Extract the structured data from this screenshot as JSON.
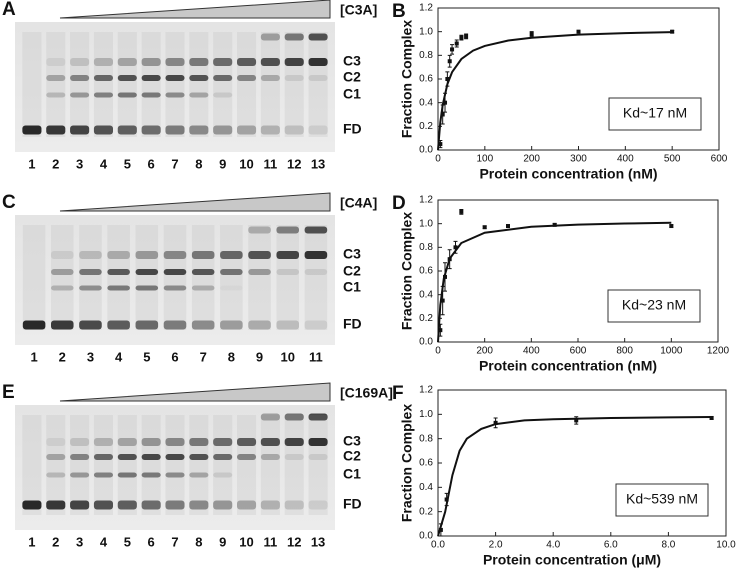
{
  "gels": [
    {
      "panel": "A",
      "label": "[C3A]",
      "lanes": [
        "1",
        "2",
        "3",
        "4",
        "5",
        "6",
        "7",
        "8",
        "9",
        "10",
        "11",
        "12",
        "13"
      ],
      "bands": [
        "C3",
        "C2",
        "C1",
        "FD"
      ]
    },
    {
      "panel": "C",
      "label": "[C4A]",
      "lanes": [
        "1",
        "2",
        "3",
        "4",
        "5",
        "6",
        "7",
        "8",
        "9",
        "10",
        "11"
      ],
      "bands": [
        "C3",
        "C2",
        "C1",
        "FD"
      ]
    },
    {
      "panel": "E",
      "label": "[C169A]",
      "lanes": [
        "1",
        "2",
        "3",
        "4",
        "5",
        "6",
        "7",
        "8",
        "9",
        "10",
        "11",
        "12",
        "13"
      ],
      "bands": [
        "C3",
        "C2",
        "C1",
        "FD"
      ]
    }
  ],
  "chart_data": [
    {
      "type": "scatter",
      "panel": "B",
      "xlabel": "Protein concentration (nM)",
      "ylabel": "Fraction Complex",
      "annotation": "Kd~17 nM",
      "x": [
        5,
        10,
        15,
        20,
        25,
        30,
        40,
        50,
        60,
        200,
        300,
        500
      ],
      "values": [
        0.05,
        0.3,
        0.4,
        0.6,
        0.75,
        0.85,
        0.9,
        0.95,
        0.96,
        0.98,
        1.0,
        1.0
      ],
      "errors": [
        0.03,
        0.08,
        0.08,
        0.06,
        0.05,
        0.04,
        0.03,
        0.02,
        0.02,
        0.02,
        0.01,
        0.01
      ],
      "fit_x": [
        0,
        5,
        10,
        20,
        30,
        50,
        75,
        100,
        150,
        200,
        300,
        400,
        500
      ],
      "fit_values": [
        0,
        0.234,
        0.381,
        0.557,
        0.658,
        0.769,
        0.84,
        0.88,
        0.925,
        0.949,
        0.975,
        0.988,
        0.996
      ],
      "xlim": [
        0,
        600
      ],
      "xticks": [
        0,
        100,
        200,
        300,
        400,
        500,
        600
      ],
      "ylim": [
        0,
        1.2
      ],
      "yticks": [
        {
          "value": 0,
          "label": "0.0"
        },
        0.2,
        0.4,
        0.6,
        0.8,
        {
          "value": 1,
          "label": "1.0"
        },
        1.2
      ]
    },
    {
      "type": "scatter",
      "panel": "D",
      "xlabel": "Protein concentration (nM)",
      "ylabel": "Fraction Complex",
      "annotation": "Kd~23 nM",
      "x": [
        10,
        20,
        30,
        50,
        75,
        100,
        200,
        300,
        500,
        1000
      ],
      "values": [
        0.1,
        0.35,
        0.55,
        0.7,
        0.8,
        1.1,
        0.97,
        0.98,
        0.99,
        0.98
      ],
      "errors": [
        0.05,
        0.12,
        0.12,
        0.08,
        0.05,
        0.02,
        0.01,
        0.01,
        0.01,
        0.01
      ],
      "fit_x": [
        0,
        10,
        25,
        50,
        100,
        200,
        400,
        600,
        800,
        1000
      ],
      "fit_values": [
        0,
        0.312,
        0.536,
        0.705,
        0.837,
        0.924,
        0.974,
        0.992,
        1.001,
        1.007
      ],
      "xlim": [
        0,
        1200
      ],
      "xticks": [
        0,
        200,
        400,
        600,
        800,
        1000,
        1200
      ],
      "ylim": [
        0,
        1.2
      ],
      "yticks": [
        {
          "value": 0,
          "label": "0.0"
        },
        0.2,
        0.4,
        0.6,
        0.8,
        {
          "value": 1,
          "label": "1.0"
        },
        1.2
      ]
    },
    {
      "type": "scatter",
      "panel": "F",
      "xlabel": "Protein concentration (μM)",
      "ylabel": "Fraction Complex",
      "annotation": "Kd~539 nM",
      "x": [
        0.1,
        0.3,
        2.0,
        4.8,
        9.5
      ],
      "values": [
        0.05,
        0.3,
        0.93,
        0.95,
        0.97
      ],
      "errors": [
        0.05,
        0.05,
        0.04,
        0.03,
        0.01
      ],
      "fit_x": [
        0,
        0.25,
        0.5,
        0.75,
        1.0,
        1.5,
        2,
        3,
        4,
        6,
        8,
        9.5
      ],
      "fit_values": [
        0,
        0.2,
        0.5,
        0.7,
        0.8,
        0.88,
        0.92,
        0.95,
        0.96,
        0.97,
        0.975,
        0.978
      ],
      "xlim": [
        0,
        10
      ],
      "xticks": [
        {
          "value": 0,
          "label": "0.0"
        },
        {
          "value": 2,
          "label": "2.0"
        },
        {
          "value": 4,
          "label": "4.0"
        },
        {
          "value": 6,
          "label": "6.0"
        },
        {
          "value": 8,
          "label": "8.0"
        },
        {
          "value": 10,
          "label": "10.0"
        }
      ],
      "ylim": [
        0,
        1.2
      ],
      "yticks": [
        {
          "value": 0,
          "label": "0.0"
        },
        0.2,
        0.4,
        0.6,
        0.8,
        {
          "value": 1,
          "label": "1.0"
        },
        1.2
      ]
    }
  ]
}
